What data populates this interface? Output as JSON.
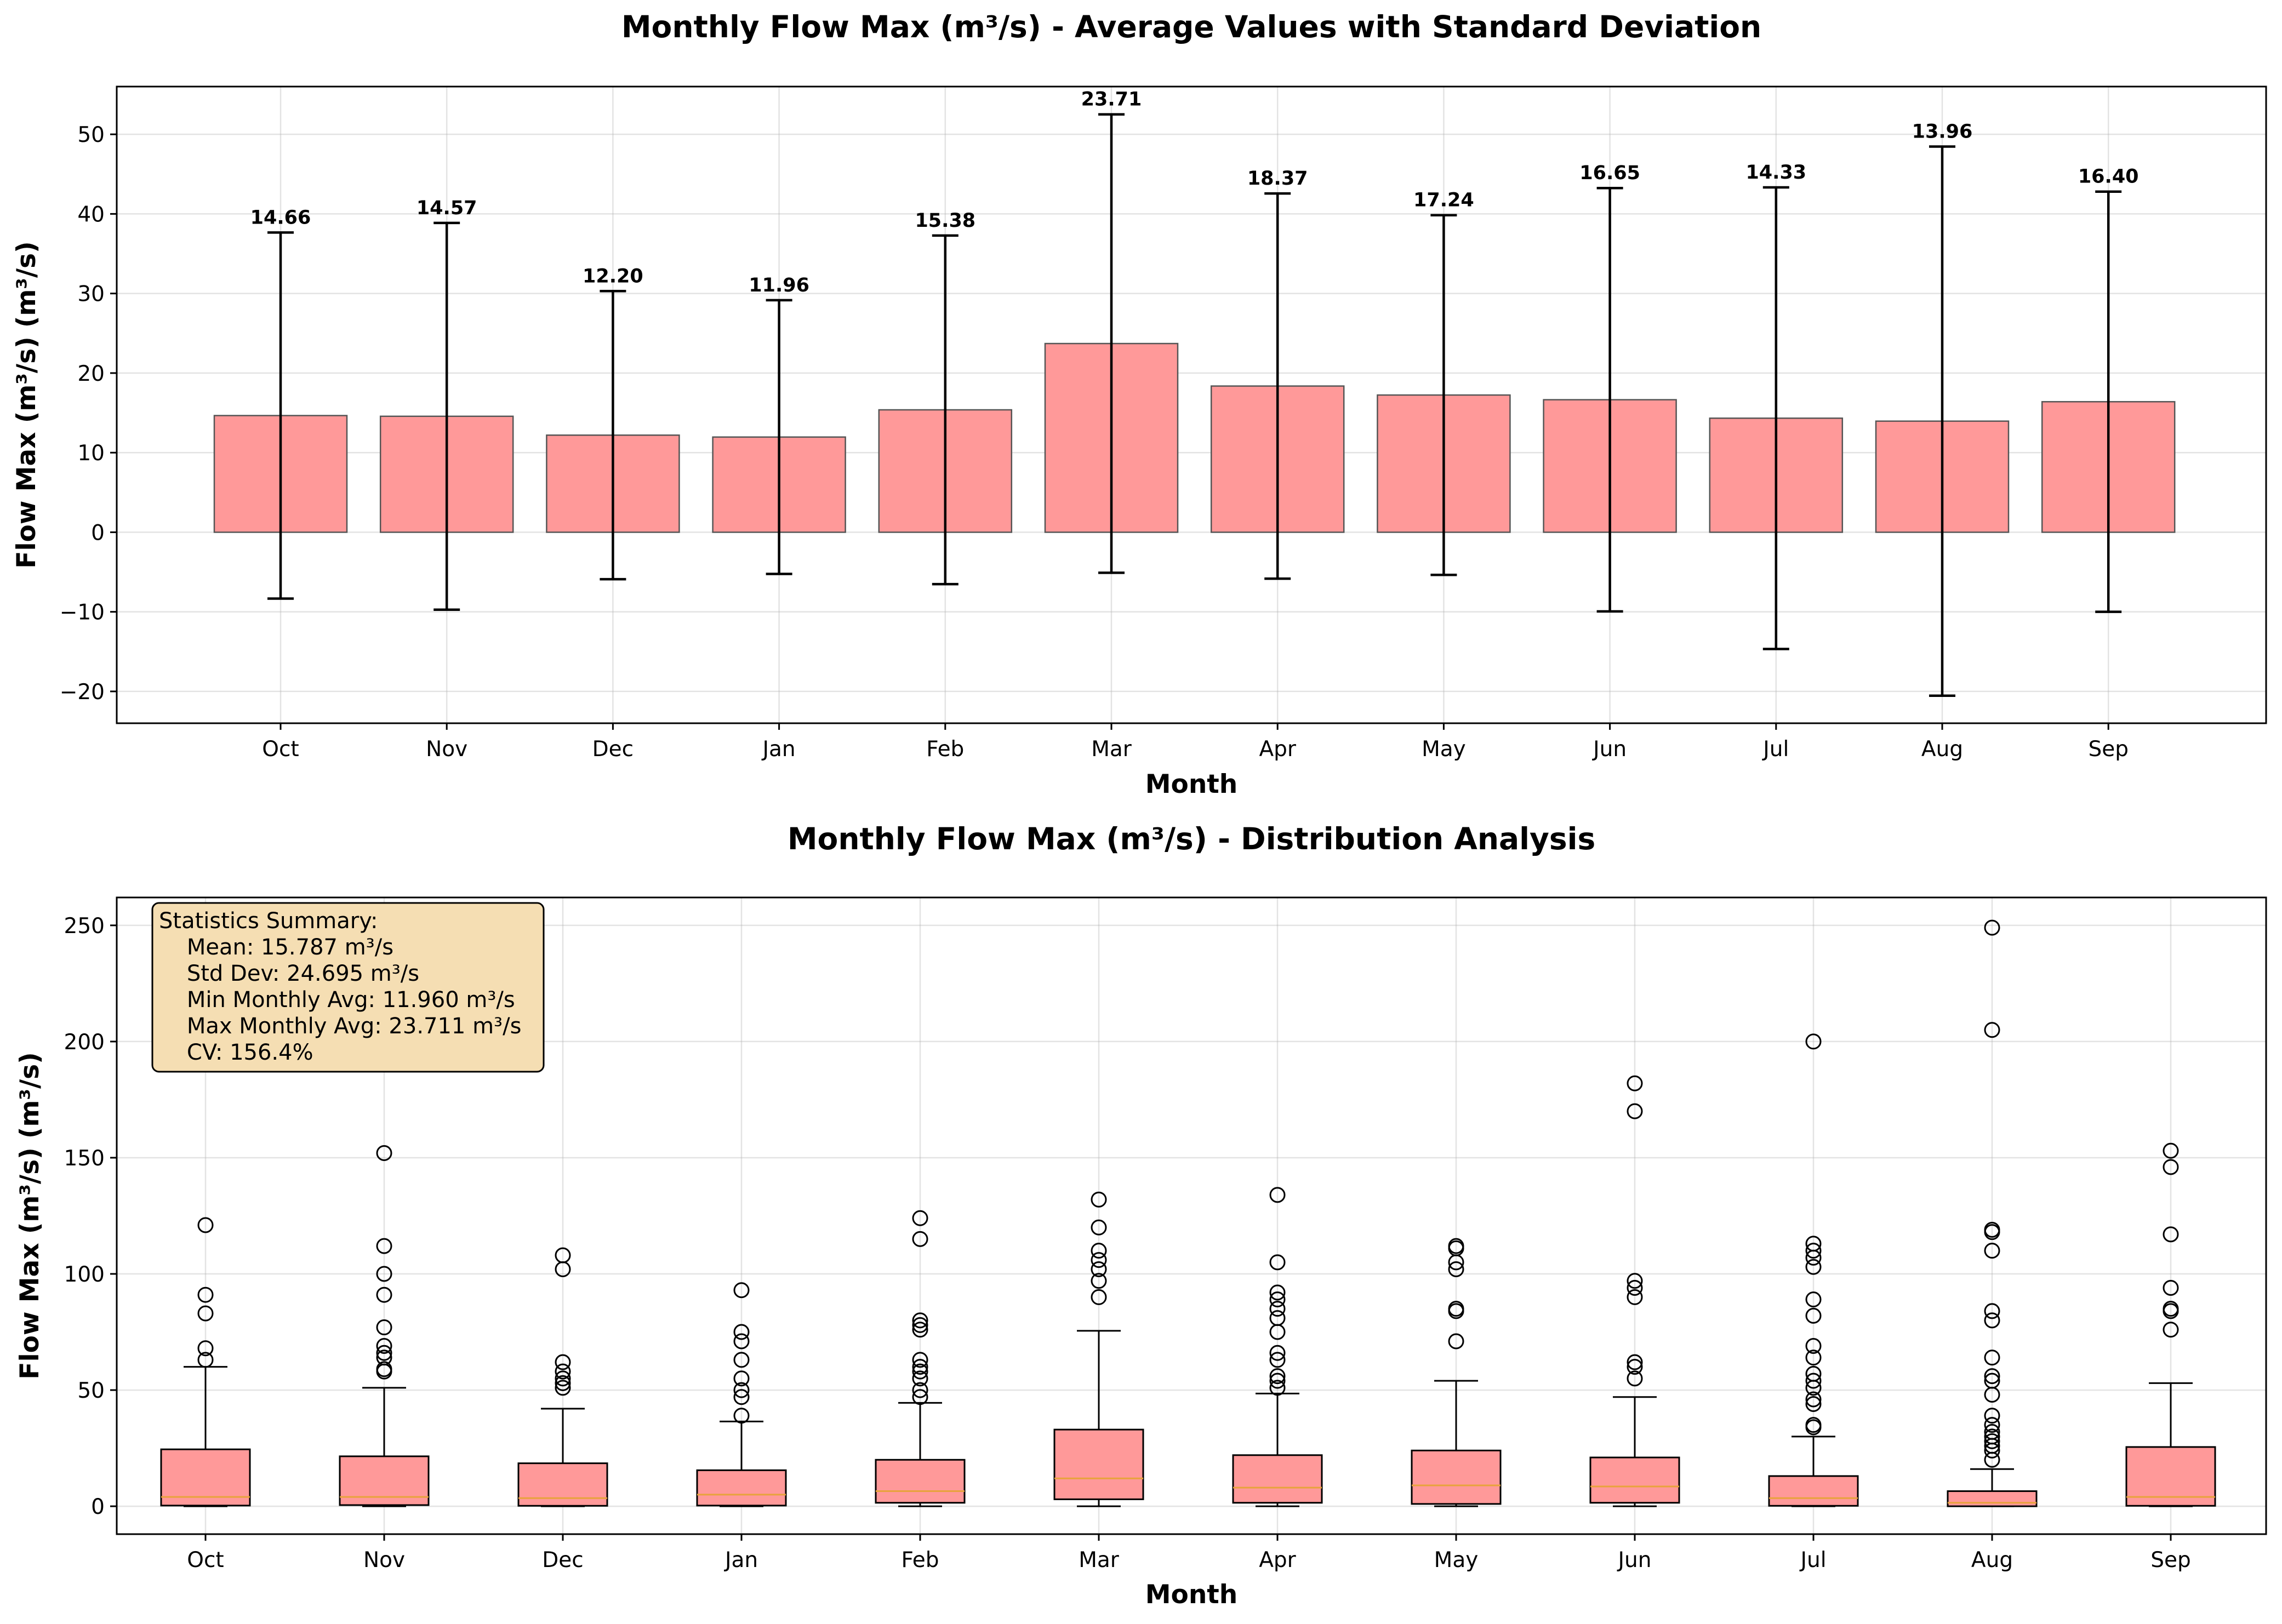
{
  "chart_data": [
    {
      "type": "bar",
      "title": "Monthly Flow Max (m³/s) - Average Values with Standard Deviation",
      "xlabel": "Month",
      "ylabel": "Flow Max (m³/s) (m³/s)",
      "categories": [
        "Oct",
        "Nov",
        "Dec",
        "Jan",
        "Feb",
        "Mar",
        "Apr",
        "May",
        "Jun",
        "Jul",
        "Aug",
        "Sep"
      ],
      "values": [
        14.66,
        14.57,
        12.2,
        11.96,
        15.38,
        23.71,
        18.37,
        17.24,
        16.65,
        14.33,
        13.96,
        16.4
      ],
      "value_labels": [
        "14.66",
        "14.57",
        "12.20",
        "11.96",
        "15.38",
        "23.71",
        "18.37",
        "17.24",
        "16.65",
        "14.33",
        "13.96",
        "16.40"
      ],
      "error": [
        23.0,
        24.3,
        18.1,
        17.2,
        21.9,
        28.8,
        24.2,
        22.6,
        26.6,
        29.0,
        34.5,
        26.4
      ],
      "ylim": [
        -24,
        56
      ],
      "yticks": [
        -20,
        -10,
        0,
        10,
        20,
        30,
        40,
        50
      ],
      "ytick_labels": [
        "−20",
        "−10",
        "0",
        "10",
        "20",
        "30",
        "40",
        "50"
      ],
      "grid": true,
      "bar_color": "#ff9999"
    },
    {
      "type": "box",
      "title": "Monthly Flow Max (m³/s) - Distribution Analysis",
      "xlabel": "Month",
      "ylabel": "Flow Max (m³/s) (m³/s)",
      "categories": [
        "Oct",
        "Nov",
        "Dec",
        "Jan",
        "Feb",
        "Mar",
        "Apr",
        "May",
        "Jun",
        "Jul",
        "Aug",
        "Sep"
      ],
      "boxes": [
        {
          "whislo": 0,
          "q1": 0.3,
          "med": 4,
          "q3": 24.5,
          "whishi": 60,
          "fliers": [
            63,
            68,
            83,
            91,
            121
          ]
        },
        {
          "whislo": 0,
          "q1": 0.5,
          "med": 4,
          "q3": 21.5,
          "whishi": 51,
          "fliers": [
            58,
            59,
            64,
            66,
            69,
            77,
            91,
            100,
            112,
            152
          ]
        },
        {
          "whislo": 0,
          "q1": 0.2,
          "med": 3.5,
          "q3": 18.5,
          "whishi": 42,
          "fliers": [
            51,
            53,
            55,
            58,
            62,
            102,
            108
          ]
        },
        {
          "whislo": 0,
          "q1": 0.3,
          "med": 5,
          "q3": 15.5,
          "whishi": 36.5,
          "fliers": [
            39,
            47,
            50,
            55,
            63,
            71,
            75,
            93
          ]
        },
        {
          "whislo": 0,
          "q1": 1.5,
          "med": 6.5,
          "q3": 20,
          "whishi": 44.5,
          "fliers": [
            47,
            50,
            55,
            58,
            60,
            63,
            76,
            78,
            80,
            115,
            124
          ]
        },
        {
          "whislo": 0,
          "q1": 3,
          "med": 12,
          "q3": 33,
          "whishi": 75.5,
          "fliers": [
            90,
            97,
            102,
            106,
            110,
            120,
            132
          ]
        },
        {
          "whislo": 0,
          "q1": 1.5,
          "med": 8,
          "q3": 22,
          "whishi": 48.5,
          "fliers": [
            51,
            54,
            56,
            63,
            66,
            75,
            81,
            85,
            89,
            92,
            105,
            134
          ]
        },
        {
          "whislo": 0,
          "q1": 1,
          "med": 9,
          "q3": 24,
          "whishi": 54,
          "fliers": [
            71,
            84,
            85,
            102,
            105,
            111,
            112
          ]
        },
        {
          "whislo": 0,
          "q1": 1.5,
          "med": 8.5,
          "q3": 21,
          "whishi": 47,
          "fliers": [
            55,
            60,
            62,
            90,
            94,
            97,
            170,
            182
          ]
        },
        {
          "whislo": 0,
          "q1": 0.2,
          "med": 3.5,
          "q3": 13,
          "whishi": 30,
          "fliers": [
            34,
            35,
            44,
            46,
            51,
            54,
            57,
            64,
            69,
            82,
            89,
            103,
            107,
            110,
            113,
            200
          ]
        },
        {
          "whislo": 0,
          "q1": 0,
          "med": 1.5,
          "q3": 6.5,
          "whishi": 16,
          "fliers": [
            20,
            24,
            26,
            28,
            30,
            32,
            35,
            39,
            48,
            54,
            56,
            64,
            80,
            84,
            110,
            118,
            119,
            205,
            249
          ]
        },
        {
          "whislo": 0,
          "q1": 0.2,
          "med": 4,
          "q3": 25.5,
          "whishi": 53,
          "fliers": [
            76,
            84,
            85,
            94,
            117,
            146,
            153
          ]
        }
      ],
      "ylim": [
        -12,
        262
      ],
      "yticks": [
        0,
        50,
        100,
        150,
        200,
        250
      ],
      "ytick_labels": [
        "0",
        "50",
        "100",
        "150",
        "200",
        "250"
      ],
      "grid": true,
      "box_color": "#ff9999",
      "median_color": "#e8a33c",
      "stats_box": {
        "lines": [
          "Statistics Summary:",
          "    Mean: 15.787 m³/s",
          "    Std Dev: 24.695 m³/s",
          "    Min Monthly Avg: 11.960 m³/s",
          "    Max Monthly Avg: 23.711 m³/s",
          "    CV: 156.4%"
        ],
        "background": "#f5deb3",
        "placement": "top-left"
      }
    }
  ]
}
